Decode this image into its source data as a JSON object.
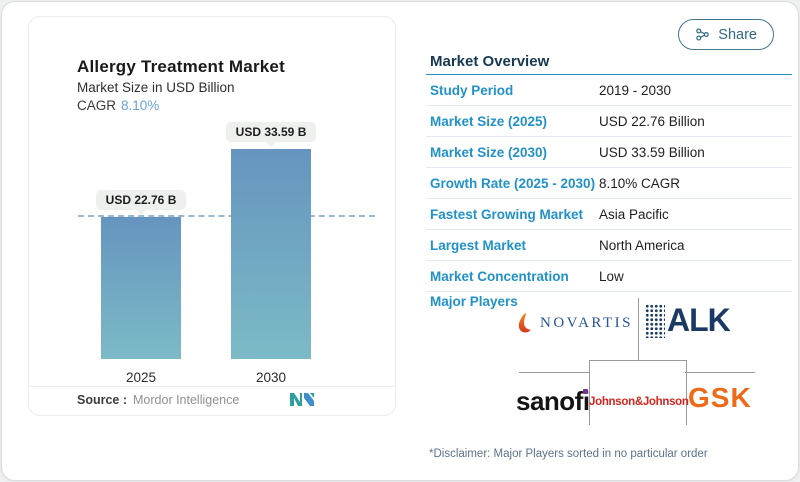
{
  "share": {
    "label": "Share"
  },
  "chart_panel": {
    "title": "Allergy Treatment Market",
    "subtitle": "Market Size in USD Billion",
    "cagr_label": "CAGR",
    "cagr_value": "8.10%",
    "source_label": "Source :",
    "source_value": "Mordor Intelligence"
  },
  "chart_data": {
    "type": "bar",
    "title": "Allergy Treatment Market",
    "ylabel": "Market Size in USD Billion",
    "categories": [
      "2025",
      "2030"
    ],
    "values": [
      22.76,
      33.59
    ],
    "labels": [
      "USD 22.76 B",
      "USD 33.59 B"
    ],
    "cagr": "8.10%",
    "reference_line": 22.76,
    "grid": false,
    "bar_color_top": "#6595bf",
    "bar_color_bottom": "#7dbac6",
    "reference_line_color": "#96b9cd"
  },
  "overview": {
    "heading": "Market Overview",
    "rows": [
      {
        "label": "Study Period",
        "value": "2019 - 2030"
      },
      {
        "label": "Market Size (2025)",
        "value": "USD 22.76 Billion"
      },
      {
        "label": "Market Size (2030)",
        "value": "USD 33.59 Billion"
      },
      {
        "label": "Growth Rate (2025 - 2030)",
        "value": "8.10% CAGR"
      },
      {
        "label": "Fastest Growing Market",
        "value": "Asia Pacific"
      },
      {
        "label": "Largest Market",
        "value": "North America"
      },
      {
        "label": "Market Concentration",
        "value": "Low"
      }
    ],
    "major_players": {
      "label": "Major Players",
      "names": [
        "NOVARTIS",
        "ALK",
        "sanofi",
        "Johnson&Johnson",
        "GSK"
      ]
    },
    "disclaimer": "*Disclaimer: Major Players sorted in no particular order"
  },
  "colors": {
    "accent_blue": "#2191c9",
    "heading_navy": "#16394f",
    "cagr_blue": "#68a2d8",
    "share_teal": "#2e6a85"
  }
}
